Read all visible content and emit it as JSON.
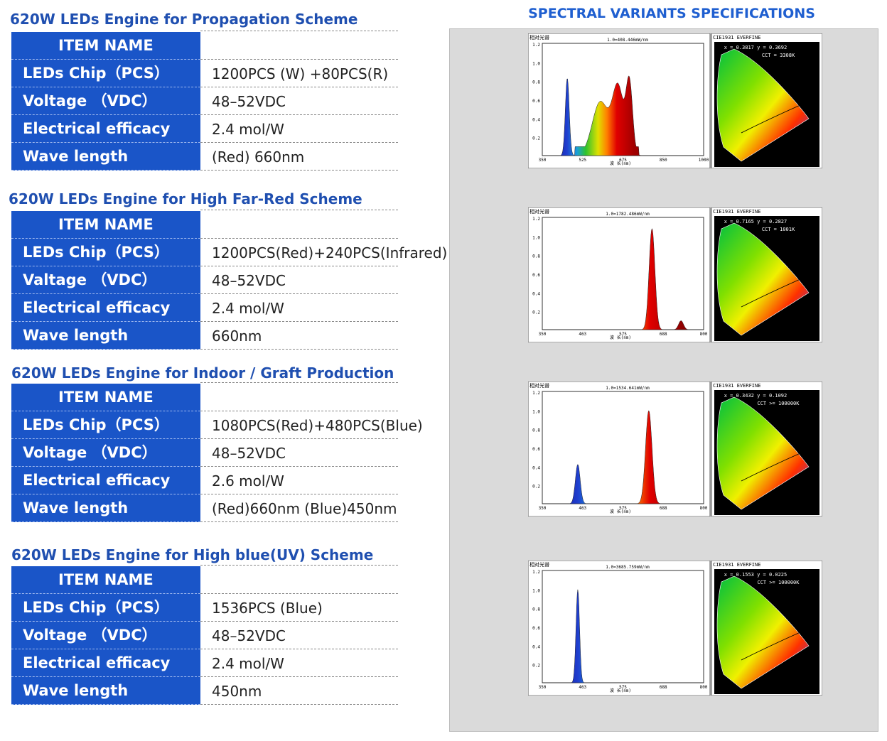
{
  "header": {
    "title": "SPECTRAL VARIANTS SPECIFICATIONS"
  },
  "sections": [
    {
      "title": "620W LEDs Engine for Propagation Scheme",
      "header_cell": "ITEM NAME",
      "rows": [
        {
          "label": "LEDs Chip（PCS）",
          "value": "1200PCS (W) +80PCS(R)"
        },
        {
          "label": "Voltage （VDC）",
          "value": "48–52VDC"
        },
        {
          "label": "Electrical efficacy",
          "value": "2.4 mol/W"
        },
        {
          "label": "Wave length",
          "value": "(Red) 660nm"
        }
      ]
    },
    {
      "title": "620W LEDs Engine for High Far-Red Scheme",
      "header_cell": "ITEM NAME",
      "rows": [
        {
          "label": "LEDs Chip（PCS）",
          "value": "1200PCS(Red)+240PCS(Infrared)"
        },
        {
          "label": "Valtage （VDC）",
          "value": "48–52VDC"
        },
        {
          "label": "Electrical efficacy",
          "value": "2.4 mol/W"
        },
        {
          "label": "Wave length",
          "value": "660nm"
        }
      ]
    },
    {
      "title": "620W LEDs Engine for Indoor / Graft Production",
      "header_cell": "ITEM NAME",
      "rows": [
        {
          "label": "LEDs Chip（PCS）",
          "value": "1080PCS(Red)+480PCS(Blue)"
        },
        {
          "label": "Voltage （VDC）",
          "value": "48–52VDC"
        },
        {
          "label": "Electrical efficacy",
          "value": "2.6 mol/W"
        },
        {
          "label": "Wave length",
          "value": "(Red)660nm (Blue)450nm"
        }
      ]
    },
    {
      "title": "620W LEDs Engine for High blue(UV) Scheme",
      "header_cell": "ITEM NAME",
      "rows": [
        {
          "label": "LEDs Chip（PCS）",
          "value": "1536PCS (Blue)"
        },
        {
          "label": "Voltage （VDC）",
          "value": "48–52VDC"
        },
        {
          "label": "Electrical efficacy",
          "value": "2.4 mol/W"
        },
        {
          "label": "Wave length",
          "value": "450nm"
        }
      ]
    }
  ],
  "spectra": [
    {
      "y_label": "相对光谱",
      "scale": "1.0=408.446mW/nm",
      "yticks": [
        "1.2",
        "1.0",
        "0.8",
        "0.6",
        "0.4",
        "0.2"
      ],
      "xticks": [
        "350",
        "525",
        "675",
        "850",
        "1000"
      ],
      "x_label": "波 长(nm)",
      "cie_title": "CIE1931 EVERFINE",
      "xy": "x = 0.3817 y = 0.3692",
      "cct": "CCT = 3308K"
    },
    {
      "y_label": "相对光谱",
      "scale": "1.0=1782.486mW/nm",
      "yticks": [
        "1.2",
        "1.0",
        "0.8",
        "0.6",
        "0.4",
        "0.2"
      ],
      "xticks": [
        "350",
        "463",
        "575",
        "688",
        "800"
      ],
      "x_label": "波 长(nm)",
      "cie_title": "CIE1931 EVERFINE",
      "xy": "x = 0.7165 y = 0.2827",
      "cct": "CCT = 1001K"
    },
    {
      "y_label": "相对光谱",
      "scale": "1.0=1534.641mW/nm",
      "yticks": [
        "1.2",
        "1.0",
        "0.8",
        "0.6",
        "0.4",
        "0.2"
      ],
      "xticks": [
        "350",
        "463",
        "575",
        "688",
        "800"
      ],
      "x_label": "波 长(nm)",
      "cie_title": "CIE1931 EVERFINE",
      "xy": "x = 0.3432 y = 0.1092",
      "cct": "CCT >= 100000K"
    },
    {
      "y_label": "相对光谱",
      "scale": "1.0=3685.759mW/nm",
      "yticks": [
        "1.2",
        "1.0",
        "0.8",
        "0.6",
        "0.4",
        "0.2"
      ],
      "xticks": [
        "350",
        "463",
        "575",
        "688",
        "800"
      ],
      "x_label": "波 长(nm)",
      "cie_title": "CIE1931 EVERFINE",
      "xy": "x = 0.1553 y = 0.0225",
      "cct": "CCT >= 100000K"
    }
  ]
}
